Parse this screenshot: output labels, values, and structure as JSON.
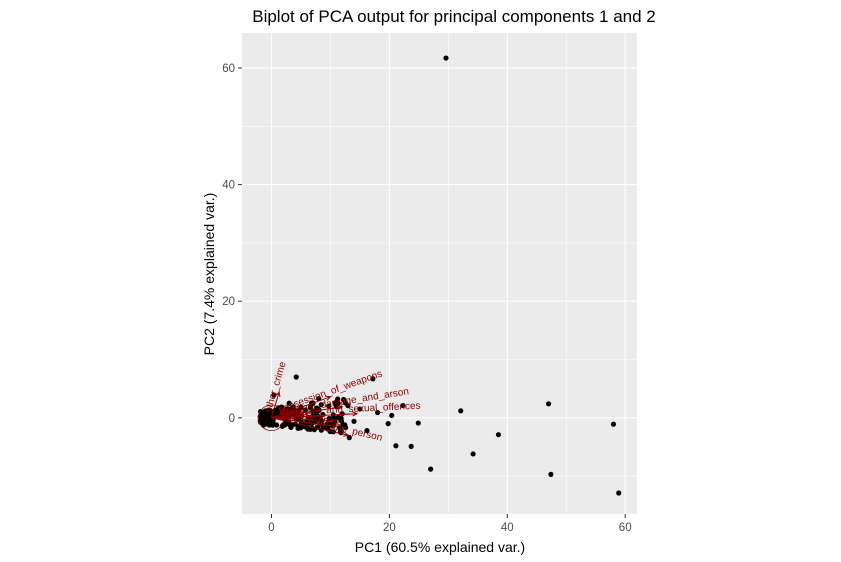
{
  "chart_data": {
    "type": "scatter",
    "title": "Biplot of PCA output for principal components 1 and 2",
    "xlabel": "PC1 (60.5% explained var.)",
    "ylabel": "PC2 (7.4% explained var.)",
    "xlim": [
      -5,
      62
    ],
    "ylim": [
      -16.5,
      66
    ],
    "x_ticks": [
      0,
      20,
      40,
      60
    ],
    "y_ticks": [
      0,
      20,
      40,
      60
    ],
    "x_tick_labels": [
      "0",
      "20",
      "40",
      "60"
    ],
    "y_tick_labels": [
      "0",
      "20",
      "40",
      "60"
    ],
    "grid": true,
    "point_color": "#000000",
    "arrow_color": "#8b0000",
    "panel_color": "#ebebeb",
    "grid_color": "#ffffff",
    "points": [
      {
        "x": 29.6,
        "y": 61.7
      },
      {
        "x": 17.2,
        "y": 6.7
      },
      {
        "x": 4.2,
        "y": 7.0
      },
      {
        "x": 0.4,
        "y": 3.9
      },
      {
        "x": 47.0,
        "y": 2.4
      },
      {
        "x": 32.1,
        "y": 1.2
      },
      {
        "x": 22.3,
        "y": 2.1
      },
      {
        "x": 20.4,
        "y": 0.4
      },
      {
        "x": 58.0,
        "y": -1.1
      },
      {
        "x": 19.8,
        "y": -1.0
      },
      {
        "x": 24.9,
        "y": -0.9
      },
      {
        "x": 38.5,
        "y": -2.9
      },
      {
        "x": 16.2,
        "y": -2.2
      },
      {
        "x": 21.1,
        "y": -4.8
      },
      {
        "x": 23.7,
        "y": -4.9
      },
      {
        "x": 34.2,
        "y": -6.2
      },
      {
        "x": 27.0,
        "y": -8.8
      },
      {
        "x": 47.4,
        "y": -9.7
      },
      {
        "x": 58.9,
        "y": -12.9
      },
      {
        "x": 13.2,
        "y": -3.4
      },
      {
        "x": 10.5,
        "y": -2.4
      },
      {
        "x": 12.0,
        "y": 0.7
      },
      {
        "x": 15.0,
        "y": 1.5
      },
      {
        "x": 8.0,
        "y": 3.3
      },
      {
        "x": 7.0,
        "y": 1.2
      },
      {
        "x": 9.5,
        "y": -1.0
      },
      {
        "x": 6.0,
        "y": -0.5
      },
      {
        "x": 5.0,
        "y": 1.8
      },
      {
        "x": 3.0,
        "y": 2.5
      },
      {
        "x": 2.0,
        "y": -1.2
      },
      {
        "x": 11.0,
        "y": 1.9
      },
      {
        "x": 14.0,
        "y": -0.6
      },
      {
        "x": 18.0,
        "y": 0.9
      },
      {
        "x": 4.5,
        "y": -1.8
      },
      {
        "x": 1.2,
        "y": 1.7
      }
    ],
    "arrows": [
      {
        "label": "other_crime",
        "x": 1.3,
        "y": 4.4
      },
      {
        "label": "possession_of_weapons",
        "x": 10.0,
        "y": 3.6
      },
      {
        "label": "criminal_damage_and_arson",
        "x": 12.0,
        "y": 1.9
      },
      {
        "label": "violence_and_sexual_offences",
        "x": 14.5,
        "y": 0.7
      },
      {
        "label": "drugs",
        "x": 9.0,
        "y": 0.3
      },
      {
        "label": "robbery",
        "x": 10.5,
        "y": -0.5
      },
      {
        "label": "vehicle_crime",
        "x": 11.0,
        "y": -1.5
      },
      {
        "label": "theft_from_the_person",
        "x": 13.0,
        "y": -3.0
      }
    ],
    "circle_radius": 2.2
  }
}
